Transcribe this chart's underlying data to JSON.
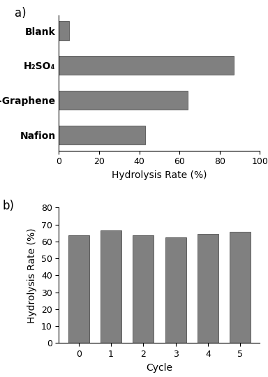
{
  "panel_a": {
    "categories": [
      "Blank",
      "H₂SO₄",
      "S-Graphene",
      "Nafion"
    ],
    "values": [
      5,
      87,
      64,
      43
    ],
    "bar_color": "#808080",
    "xlabel": "Hydrolysis Rate (%)",
    "xlim": [
      0,
      100
    ],
    "xticks": [
      0,
      20,
      40,
      60,
      80,
      100
    ],
    "label": "a)"
  },
  "panel_b": {
    "categories": [
      0,
      1,
      2,
      3,
      4,
      5
    ],
    "values": [
      63.5,
      66.5,
      63.5,
      62.5,
      64.5,
      65.5
    ],
    "bar_color": "#808080",
    "xlabel": "Cycle",
    "ylabel": "Hydrolysis Rate (%)",
    "ylim": [
      0,
      80
    ],
    "yticks": [
      0,
      10,
      20,
      30,
      40,
      50,
      60,
      70,
      80
    ],
    "label": "b)"
  },
  "background_color": "#ffffff",
  "bar_edge_color": "#3a3a3a",
  "bar_edge_width": 0.5
}
